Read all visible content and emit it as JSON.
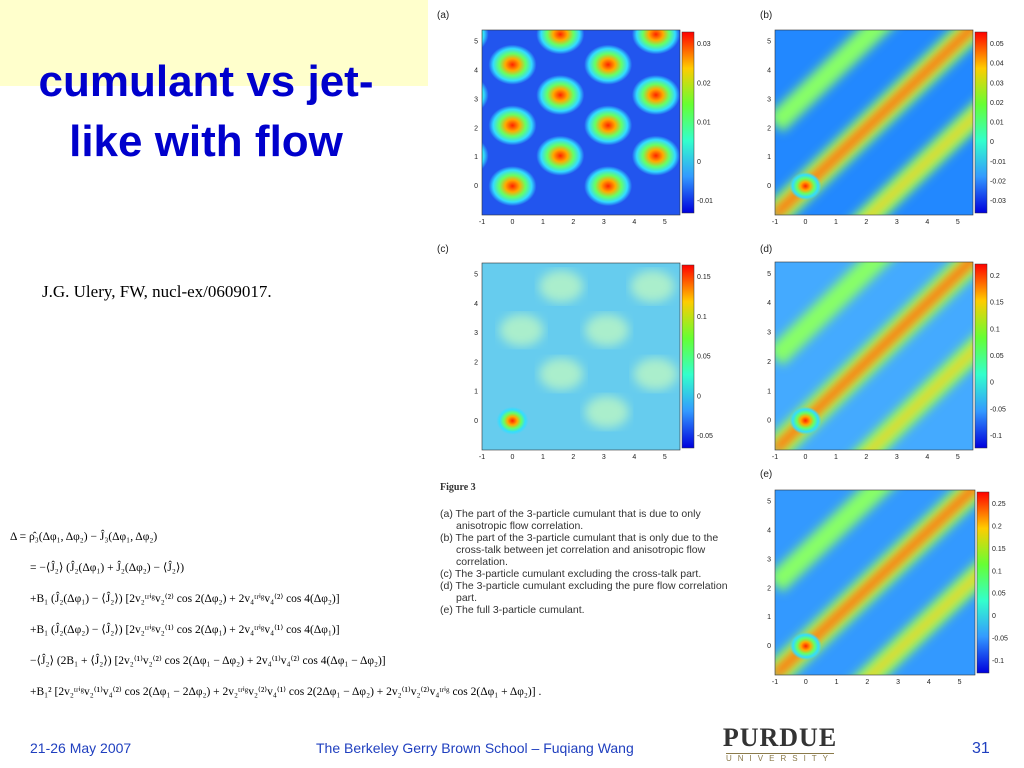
{
  "title": "cumulant vs jet-like with flow",
  "citation": "J.G. Ulery, FW, nucl-ex/0609017.",
  "panels": [
    {
      "label": "(a)",
      "xticks": [
        "-1",
        "0",
        "1",
        "2",
        "3",
        "4",
        "5"
      ],
      "yticks": [
        "0",
        "1",
        "2",
        "3",
        "4",
        "5"
      ],
      "colorbar": [
        "0.03",
        "0.02",
        "0.01",
        "0",
        "-0.01"
      ]
    },
    {
      "label": "(b)",
      "xticks": [
        "-1",
        "0",
        "1",
        "2",
        "3",
        "4",
        "5"
      ],
      "yticks": [
        "0",
        "1",
        "2",
        "3",
        "4",
        "5"
      ],
      "colorbar": [
        "0.05",
        "0.04",
        "0.03",
        "0.02",
        "0.01",
        "0",
        "-0.01",
        "-0.02",
        "-0.03"
      ]
    },
    {
      "label": "(c)",
      "xticks": [
        "-1",
        "0",
        "1",
        "2",
        "3",
        "4",
        "5"
      ],
      "yticks": [
        "0",
        "1",
        "2",
        "3",
        "4",
        "5"
      ],
      "colorbar": [
        "0.15",
        "0.1",
        "0.05",
        "0",
        "-0.05"
      ]
    },
    {
      "label": "(d)",
      "xticks": [
        "-1",
        "0",
        "1",
        "2",
        "3",
        "4",
        "5"
      ],
      "yticks": [
        "0",
        "1",
        "2",
        "3",
        "4",
        "5"
      ],
      "colorbar": [
        "0.2",
        "0.15",
        "0.1",
        "0.05",
        "0",
        "-0.05",
        "-0.1"
      ]
    },
    {
      "label": "(e)",
      "xticks": [
        "-1",
        "0",
        "1",
        "2",
        "3",
        "4",
        "5"
      ],
      "yticks": [
        "0",
        "1",
        "2",
        "3",
        "4",
        "5"
      ],
      "colorbar": [
        "0.25",
        "0.2",
        "0.15",
        "0.1",
        "0.05",
        "0",
        "-0.05",
        "-0.1"
      ]
    }
  ],
  "caption": {
    "heading": "Figure 3",
    "items": [
      "(a) The part of the 3-particle cumulant that is due to only anisotropic flow correlation.",
      "(b) The part of the 3-particle cumulant that is only due to the cross-talk between jet correlation and anisotropic flow correlation.",
      "(c) The 3-particle cumulant excluding the cross-talk part.",
      "(d) The 3-particle cumulant excluding the pure flow correlation part.",
      "(e) The full 3-particle cumulant."
    ]
  },
  "equations": [
    "Δ = ρ̂₃(Δφ₁, Δφ₂) − Ĵ₃(Δφ₁, Δφ₂)",
    "= −⟨Ĵ₂⟩ (Ĵ₂(Δφ₁) + Ĵ₂(Δφ₂) − ⟨Ĵ₂⟩)",
    "+B₁ (Ĵ₂(Δφ₁) − ⟨Ĵ₂⟩) [2v₂ᵗʳⁱᵍv₂⁽²⁾ cos 2(Δφ₂) + 2v₄ᵗʳⁱᵍv₄⁽²⁾ cos 4(Δφ₂)]",
    "+B₁ (Ĵ₂(Δφ₂) − ⟨Ĵ₂⟩) [2v₂ᵗʳⁱᵍv₂⁽¹⁾ cos 2(Δφ₁) + 2v₄ᵗʳⁱᵍv₄⁽¹⁾ cos 4(Δφ₁)]",
    "−⟨Ĵ₂⟩ (2B₁ + ⟨Ĵ₂⟩) [2v₂⁽¹⁾v₂⁽²⁾ cos 2(Δφ₁ − Δφ₂) + 2v₄⁽¹⁾v₄⁽²⁾ cos 4(Δφ₁ − Δφ₂)]",
    "+B₁² [2v₂ᵗʳⁱᵍv₂⁽¹⁾v₄⁽²⁾ cos 2(Δφ₁ − 2Δφ₂) + 2v₂ᵗʳⁱᵍv₂⁽²⁾v₄⁽¹⁾ cos 2(2Δφ₁ − Δφ₂) + 2v₂⁽¹⁾v₂⁽²⁾v₄ᵗʳⁱᵍ cos 2(Δφ₁ + Δφ₂)] ."
  ],
  "footer": {
    "date": "21-26 May 2007",
    "event": "The Berkeley Gerry Brown School – Fuqiang Wang",
    "logo": "PURDUE",
    "logo_sub": "UNIVERSITY",
    "page": "31"
  }
}
